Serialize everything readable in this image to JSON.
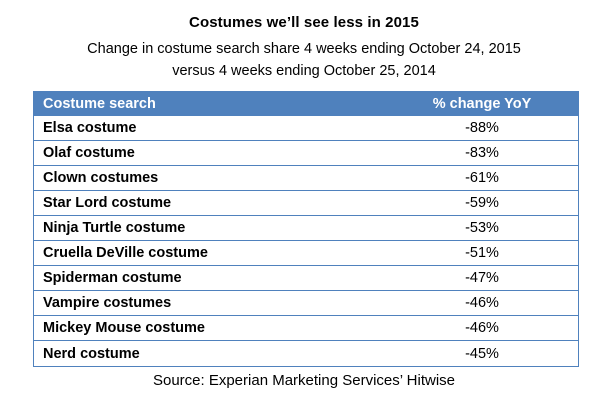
{
  "title": "Costumes we’ll see less in 2015",
  "subtitle_line1": "Change in costume search share 4 weeks ending October 24, 2015",
  "subtitle_line2": "versus 4 weeks ending October 25, 2014",
  "source": "Source: Experian Marketing Services’ Hitwise",
  "colors": {
    "header_bg": "#4f81bd",
    "header_text": "#ffffff",
    "border": "#4f81bd",
    "body_text": "#000000",
    "background": "#ffffff"
  },
  "table": {
    "columns": [
      "Costume search",
      "% change YoY"
    ],
    "rows": [
      {
        "name": "Elsa costume",
        "change": "-88%"
      },
      {
        "name": "Olaf costume",
        "change": "-83%"
      },
      {
        "name": "Clown costumes",
        "change": "-61%"
      },
      {
        "name": "Star Lord costume",
        "change": "-59%"
      },
      {
        "name": "Ninja Turtle costume",
        "change": "-53%"
      },
      {
        "name": "Cruella DeVille costume",
        "change": "-51%"
      },
      {
        "name": "Spiderman costume",
        "change": "-47%"
      },
      {
        "name": "Vampire costumes",
        "change": "-46%"
      },
      {
        "name": "Mickey Mouse costume",
        "change": "-46%"
      },
      {
        "name": "Nerd costume",
        "change": "-45%"
      }
    ]
  },
  "chart_data": {
    "type": "table",
    "title": "Costumes we’ll see less in 2015",
    "subtitle": "Change in costume search share 4 weeks ending October 24, 2015 versus 4 weeks ending October 25, 2014",
    "columns": [
      "Costume search",
      "% change YoY"
    ],
    "categories": [
      "Elsa costume",
      "Olaf costume",
      "Clown costumes",
      "Star Lord costume",
      "Ninja Turtle costume",
      "Cruella DeVille costume",
      "Spiderman costume",
      "Vampire costumes",
      "Mickey Mouse costume",
      "Nerd costume"
    ],
    "values": [
      -88,
      -83,
      -61,
      -59,
      -53,
      -51,
      -47,
      -46,
      -46,
      -45
    ],
    "value_unit": "%",
    "source": "Source: Experian Marketing Services’ Hitwise"
  }
}
